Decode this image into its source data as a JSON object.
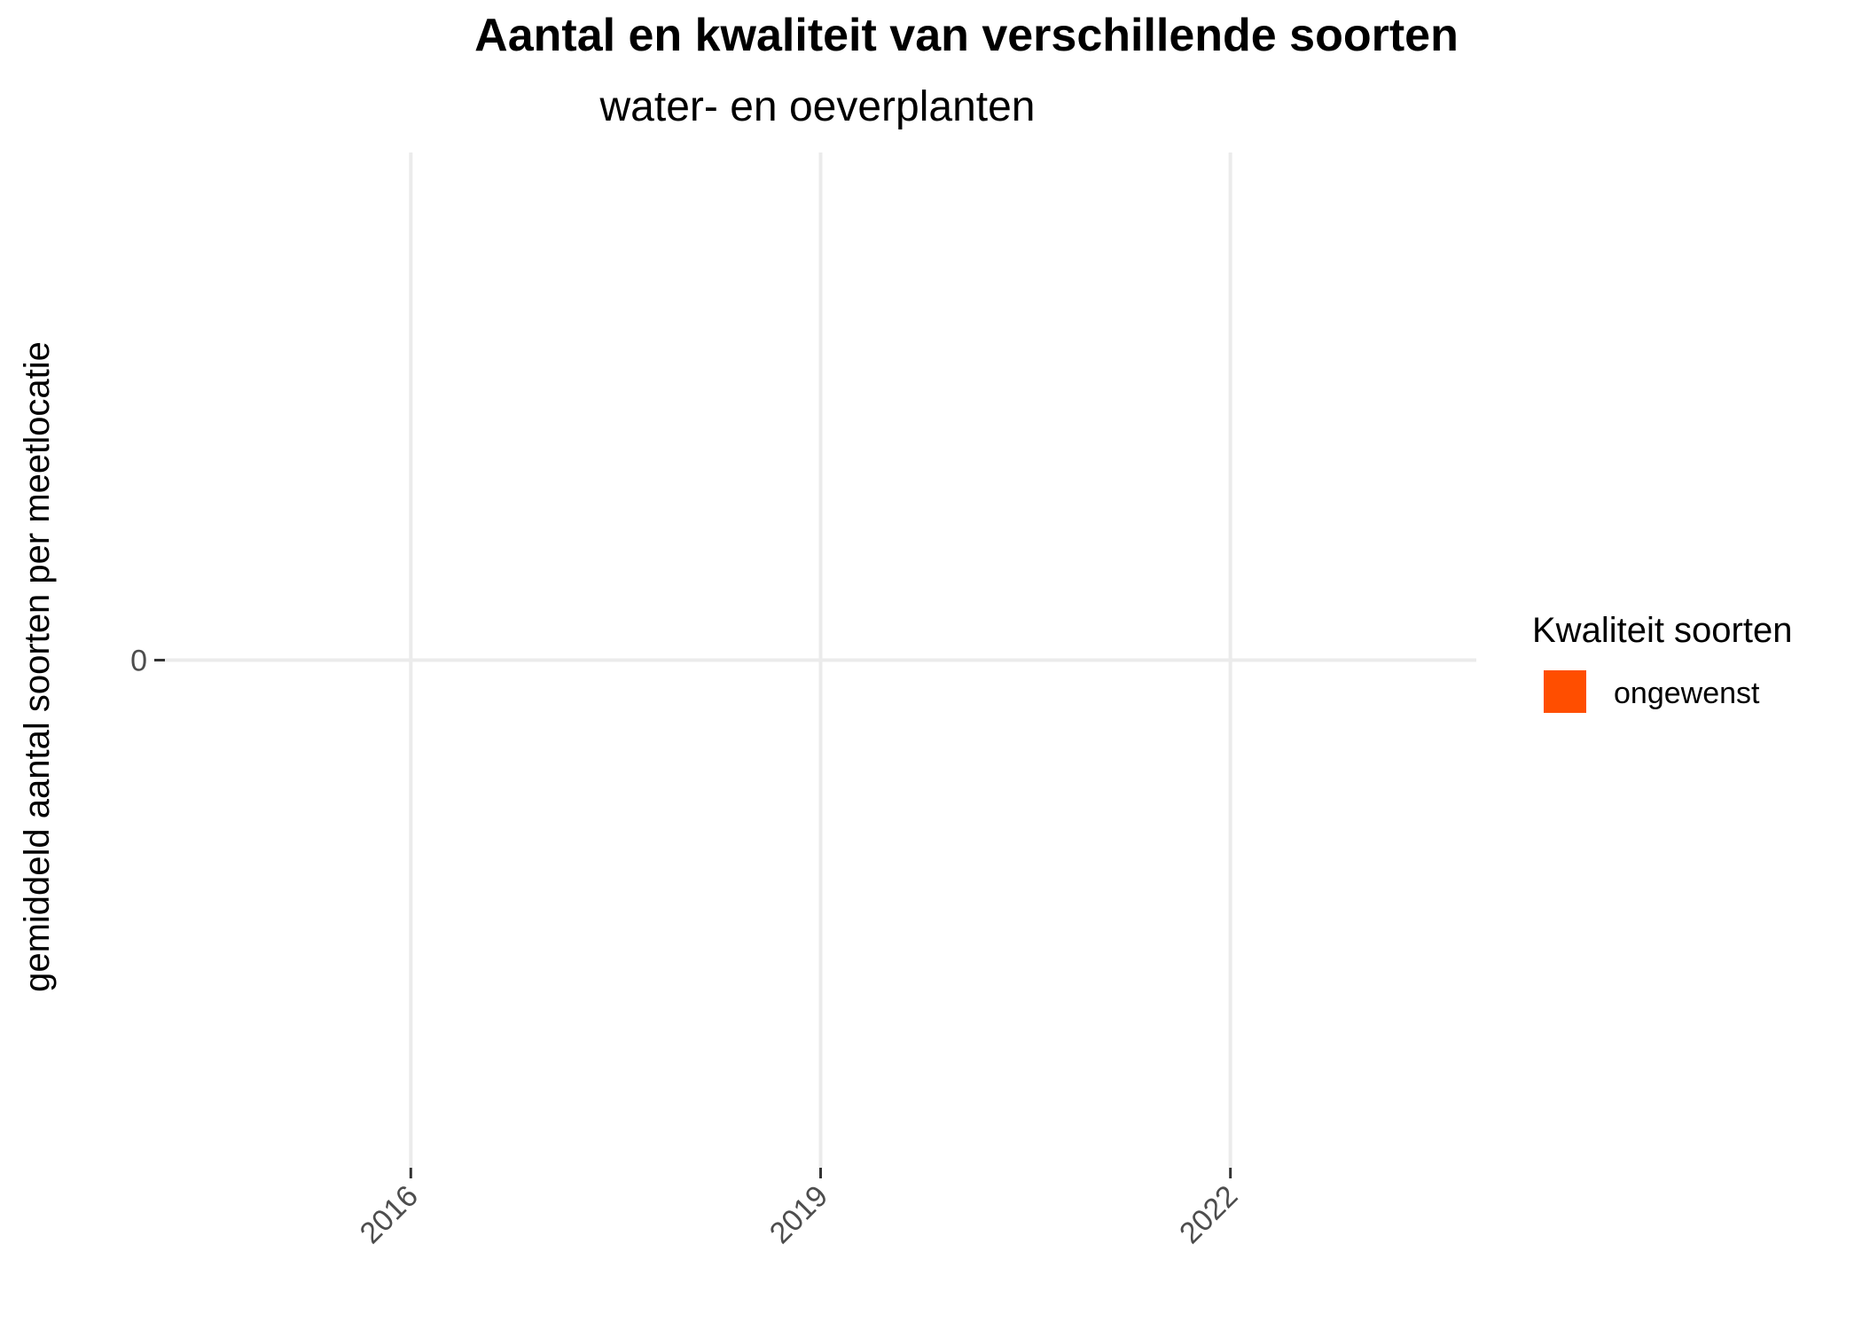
{
  "chart_data": {
    "type": "bar",
    "title": "Aantal en kwaliteit van verschillende soorten",
    "subtitle": "water- en oeverplanten",
    "xlabel": "",
    "ylabel": "gemiddeld aantal soorten per meetlocatie",
    "x_ticks": [
      "2016",
      "2019",
      "2022"
    ],
    "y_ticks": [
      "0"
    ],
    "ylim": [
      -1,
      1
    ],
    "xlim": [
      2014.2,
      2023.8
    ],
    "grid": true,
    "categories": [
      "2016",
      "2019",
      "2022"
    ],
    "series": [
      {
        "name": "ongewenst",
        "values": [
          0,
          0,
          0
        ],
        "color": "#FF4E00"
      }
    ],
    "legend": {
      "title": "Kwaliteit soorten",
      "position": "right",
      "entries": [
        {
          "label": "ongewenst",
          "color": "#FF4E00"
        }
      ]
    }
  }
}
